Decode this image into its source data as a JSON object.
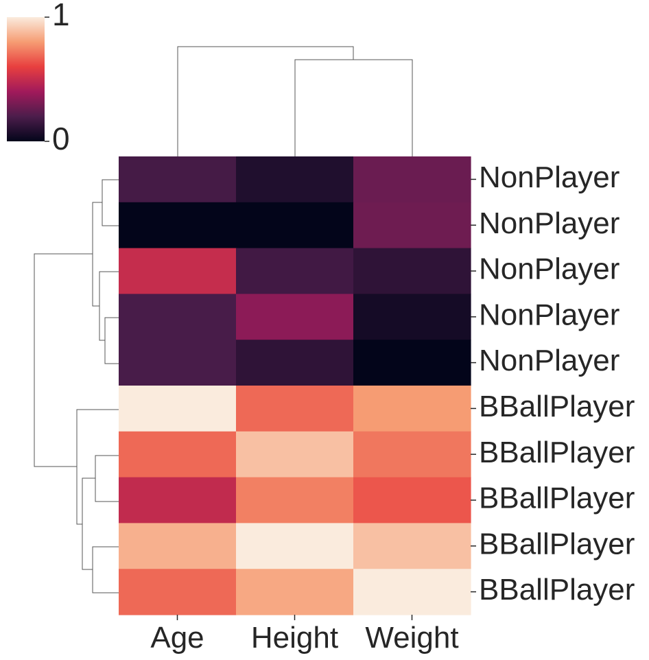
{
  "chart_data": {
    "type": "heatmap",
    "title": "",
    "xlabel": "",
    "ylabel": "",
    "columns": [
      "Age",
      "Height",
      "Weight"
    ],
    "rows": [
      "NonPlayer",
      "NonPlayer",
      "NonPlayer",
      "NonPlayer",
      "NonPlayer",
      "BBallPlayer",
      "BBallPlayer",
      "BBallPlayer",
      "BBallPlayer",
      "BBallPlayer"
    ],
    "values": [
      [
        0.18,
        0.08,
        0.27
      ],
      [
        0.0,
        0.0,
        0.28
      ],
      [
        0.5,
        0.17,
        0.12
      ],
      [
        0.19,
        0.35,
        0.05
      ],
      [
        0.19,
        0.12,
        0.0
      ],
      [
        1.0,
        0.69,
        0.8
      ],
      [
        0.69,
        0.89,
        0.72
      ],
      [
        0.49,
        0.74,
        0.65
      ],
      [
        0.85,
        1.0,
        0.89
      ],
      [
        0.69,
        0.83,
        1.0
      ]
    ],
    "colorbar": {
      "min": 0,
      "max": 1,
      "ticks": [
        0,
        1
      ],
      "tick_labels": [
        "0",
        "1"
      ],
      "colormap": "rocket",
      "colors": [
        "#03051a",
        "#4c1d4b",
        "#a11a5b",
        "#e83f3f",
        "#f69c73",
        "#faebdd"
      ]
    },
    "column_dendrogram": [
      {
        "left": 1,
        "right": 2,
        "height": 0.72
      },
      {
        "left": 0,
        "merged": [
          1,
          2
        ],
        "height": 1.0
      }
    ],
    "row_dendrogram": [
      {
        "left": 0,
        "right": 1,
        "height": 0.28
      },
      {
        "left": 3,
        "right": 4,
        "height": 0.22
      },
      {
        "left": 2,
        "merged": [
          3,
          4
        ],
        "height": 0.32
      },
      {
        "merged_a": [
          0,
          1
        ],
        "merged_b": [
          2,
          3,
          4
        ],
        "height": 0.44
      },
      {
        "left": 6,
        "right": 7,
        "height": 0.31
      },
      {
        "left": 8,
        "right": 9,
        "height": 0.31
      },
      {
        "merged_a": [
          6,
          7
        ],
        "merged_b": [
          8,
          9
        ],
        "height": 0.37
      },
      {
        "left": 5,
        "merged": [
          6,
          7,
          8,
          9
        ],
        "height": 0.44
      },
      {
        "merged_a": [
          0,
          1,
          2,
          3,
          4
        ],
        "merged_b": [
          5,
          6,
          7,
          8,
          9
        ],
        "height": 1.0
      }
    ]
  }
}
